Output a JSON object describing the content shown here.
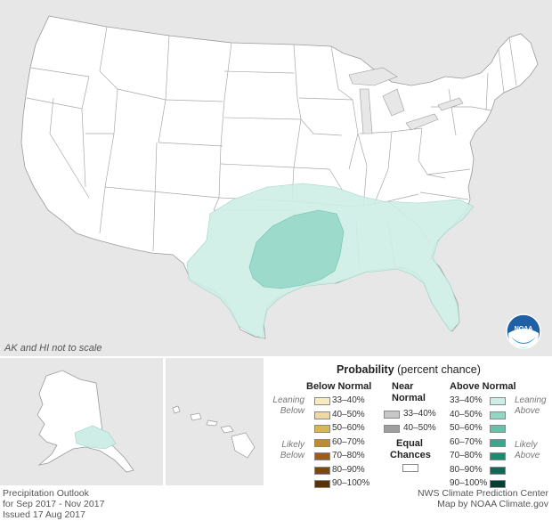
{
  "legend": {
    "title_bold": "Probability",
    "title_rest": "(percent chance)",
    "below": {
      "heading": "Below Normal",
      "side_leaning": [
        "Leaning",
        "Below"
      ],
      "side_likely": [
        "Likely",
        "Below"
      ],
      "rows": [
        {
          "label": "33–40%",
          "color": "#f8ebc2"
        },
        {
          "label": "40–50%",
          "color": "#eed8a2"
        },
        {
          "label": "50–60%",
          "color": "#d8b460"
        },
        {
          "label": "60–70%",
          "color": "#c28a36"
        },
        {
          "label": "70–80%",
          "color": "#9a5e14"
        },
        {
          "label": "80–90%",
          "color": "#7a4a0d"
        },
        {
          "label": "90–100%",
          "color": "#5a3306"
        }
      ]
    },
    "near": {
      "heading": [
        "Near",
        "Normal"
      ],
      "rows": [
        {
          "label": "33–40%",
          "color": "#c7c7c7"
        },
        {
          "label": "40–50%",
          "color": "#9e9e9e"
        }
      ]
    },
    "equal": {
      "heading": [
        "Equal",
        "Chances"
      ],
      "color": "#ffffff"
    },
    "above": {
      "heading": "Above Normal",
      "side_leaning": [
        "Leaning",
        "Above"
      ],
      "side_likely": [
        "Likely",
        "Above"
      ],
      "rows": [
        {
          "label": "33–40%",
          "color": "#cdede6"
        },
        {
          "label": "40–50%",
          "color": "#93d6c6"
        },
        {
          "label": "50–60%",
          "color": "#66c0aa"
        },
        {
          "label": "60–70%",
          "color": "#3ca68c"
        },
        {
          "label": "70–80%",
          "color": "#1b8a6f"
        },
        {
          "label": "80–90%",
          "color": "#0d6b54"
        },
        {
          "label": "90–100%",
          "color": "#053f31"
        }
      ]
    }
  },
  "map": {
    "scale_note": "AK and HI not to scale",
    "logo_text": "NOAA",
    "colors": {
      "background": "#e7e7e7",
      "land": "#ffffff",
      "above_33_40": "#cdede6",
      "above_40_50": "#93d6c6"
    }
  },
  "footer": {
    "left": [
      "Precipitation Outlook",
      "for Sep 2017 - Nov 2017",
      "Issued 17 Aug 2017"
    ],
    "right": [
      "NWS Climate Prediction Center",
      "Map by NOAA Climate.gov"
    ]
  }
}
